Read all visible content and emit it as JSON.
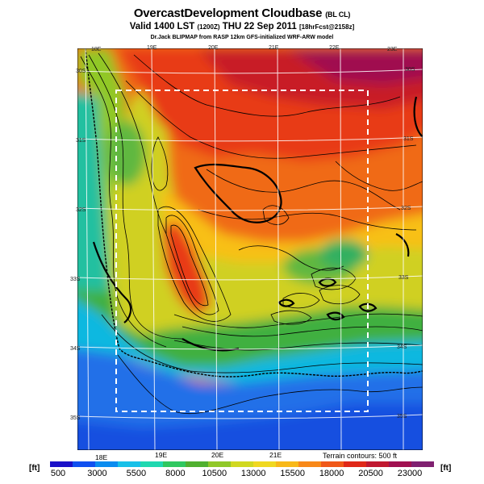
{
  "header": {
    "title": "OvercastDevelopment Cloudbase",
    "title_tag": "(BL CL)",
    "valid_main": "Valid 1400 LST",
    "valid_utc": "(1200Z)",
    "valid_date": "THU 22 Sep 2011",
    "valid_fcst": "[18hrFcst@2158z]",
    "credit": "Dr.Jack BLIPMAP from RASP 12km GFS-initialized WRF-ARW model"
  },
  "map": {
    "lon_labels_top": [
      "18E",
      "19E",
      "20E",
      "21E",
      "22E",
      "23E"
    ],
    "lon_labels_bottom": [
      "18E",
      "19E",
      "20E",
      "21E"
    ],
    "lat_labels_left": [
      "30S",
      "31S",
      "32S",
      "33S",
      "34S",
      "35S"
    ],
    "lat_labels_right": [
      "30S",
      "31S",
      "32S",
      "33S",
      "34S",
      "35S"
    ],
    "terrain_note": "Terrain contours: 500 ft"
  },
  "colorbar": {
    "unit_left": "[ft]",
    "unit_right": "[ft]",
    "ticks": [
      "500",
      "3000",
      "5500",
      "8000",
      "10500",
      "13000",
      "15500",
      "18000",
      "20500",
      "23000"
    ],
    "colors": [
      "#1a10c8",
      "#1050f0",
      "#0a8cf0",
      "#18c0e8",
      "#20d8b0",
      "#30c860",
      "#50b030",
      "#90c828",
      "#d0d820",
      "#f0d820",
      "#f8b818",
      "#f88818",
      "#f05818",
      "#e02818",
      "#c01830",
      "#a01050",
      "#802070"
    ]
  }
}
